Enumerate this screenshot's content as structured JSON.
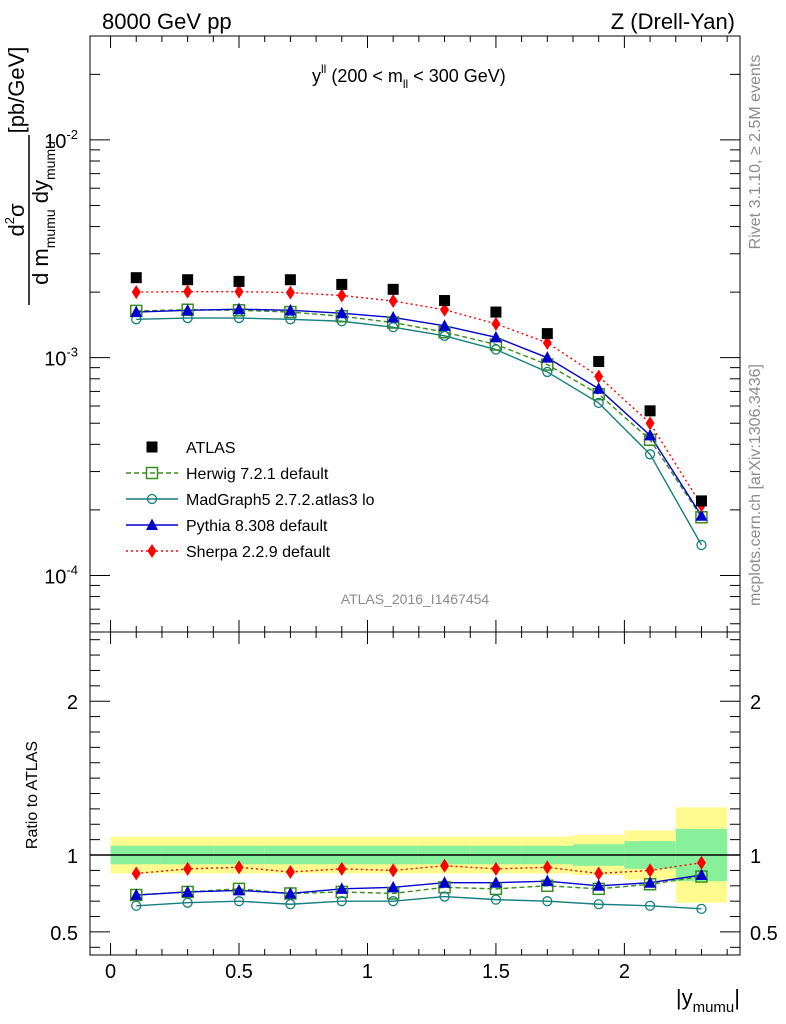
{
  "header": {
    "left": "8000 GeV pp",
    "right": "Z (Drell-Yan)"
  },
  "side": {
    "rivet": "Rivet 3.1.10, ≥ 2.5M events",
    "mcplots": "mcplots.cern.ch [arXiv:1306.3436]"
  },
  "chart_data": {
    "type": "scatter",
    "title": "y^ll (200 < m_ll < 300 GeV)",
    "analysis_label": "ATLAS_2016_I1467454",
    "xlabel": "|y_mumu|",
    "ylabel": "d²σ / d m_mumu dy_mumu [pb/GeV]",
    "ratio_ylabel": "Ratio to ATLAS",
    "xlim": [
      -0.08,
      2.45
    ],
    "ylim": [
      5.5e-05,
      0.03
    ],
    "yscale": "log",
    "ratio_ylim": [
      0.35,
      2.45
    ],
    "x": [
      0.1,
      0.3,
      0.5,
      0.7,
      0.9,
      1.1,
      1.3,
      1.5,
      1.7,
      1.9,
      2.1,
      2.3
    ],
    "x_ticks": [
      "0",
      "0.5",
      "1",
      "1.5",
      "2"
    ],
    "y_ticks": [
      "10^-4",
      "10^-3",
      "10^-2"
    ],
    "ratio_ticks": [
      "0.5",
      "1",
      "2"
    ],
    "data": {
      "name": "ATLAS",
      "color": "#000000",
      "values": [
        0.00233,
        0.00228,
        0.00224,
        0.00228,
        0.00217,
        0.00206,
        0.00183,
        0.00162,
        0.00129,
        0.00096,
        0.00057,
        0.00022
      ]
    },
    "band_inner_half": [
      0.06,
      0.06,
      0.06,
      0.06,
      0.06,
      0.06,
      0.06,
      0.06,
      0.06,
      0.07,
      0.09,
      0.17
    ],
    "band_outer_half": [
      0.12,
      0.12,
      0.12,
      0.12,
      0.12,
      0.12,
      0.12,
      0.12,
      0.12,
      0.13,
      0.16,
      0.31
    ],
    "series": [
      {
        "name": "Herwig 7.2.1 default",
        "color": "#3a8d1e",
        "marker": "open-square",
        "dash": "5,3",
        "values": [
          0.00164,
          0.00166,
          0.00165,
          0.00162,
          0.00155,
          0.00145,
          0.00131,
          0.00115,
          0.00093,
          0.00068,
          0.00042,
          0.000185
        ],
        "ratio": [
          0.74,
          0.76,
          0.78,
          0.75,
          0.76,
          0.75,
          0.79,
          0.78,
          0.8,
          0.78,
          0.81,
          0.86
        ]
      },
      {
        "name": "MadGraph5 2.7.2.atlas3 lo",
        "color": "#157f7f",
        "marker": "open-circle",
        "dash": "",
        "values": [
          0.0015,
          0.00152,
          0.00152,
          0.0015,
          0.00147,
          0.00138,
          0.00126,
          0.00109,
          0.00086,
          0.00062,
          0.00036,
          0.000138
        ],
        "ratio": [
          0.67,
          0.69,
          0.7,
          0.68,
          0.7,
          0.7,
          0.73,
          0.71,
          0.7,
          0.68,
          0.67,
          0.65
        ]
      },
      {
        "name": "Pythia 8.308 default",
        "color": "#0000cc",
        "marker": "filled-triangle",
        "dash": "",
        "values": [
          0.00162,
          0.00165,
          0.00167,
          0.00165,
          0.0016,
          0.00153,
          0.0014,
          0.00124,
          0.001,
          0.00072,
          0.00044,
          0.000188
        ],
        "ratio": [
          0.74,
          0.76,
          0.77,
          0.75,
          0.78,
          0.79,
          0.82,
          0.82,
          0.83,
          0.8,
          0.82,
          0.87
        ]
      },
      {
        "name": "Sherpa 2.2.9 default",
        "color": "#ff0000",
        "marker": "filled-diamond",
        "dash": "2,3",
        "values": [
          0.002,
          0.00201,
          0.00201,
          0.00199,
          0.00193,
          0.00182,
          0.00166,
          0.00143,
          0.00117,
          0.00082,
          0.0005,
          0.00021
        ],
        "ratio": [
          0.88,
          0.91,
          0.92,
          0.89,
          0.91,
          0.9,
          0.93,
          0.91,
          0.92,
          0.88,
          0.9,
          0.95
        ]
      }
    ],
    "legend": {
      "position": "lower-left",
      "entries": [
        "ATLAS",
        "Herwig 7.2.1 default",
        "MadGraph5 2.7.2.atlas3 lo",
        "Pythia 8.308 default",
        "Sherpa 2.2.9 default"
      ]
    },
    "band_colors": {
      "inner": "#88ef9a",
      "outer": "#fffb8e"
    }
  }
}
